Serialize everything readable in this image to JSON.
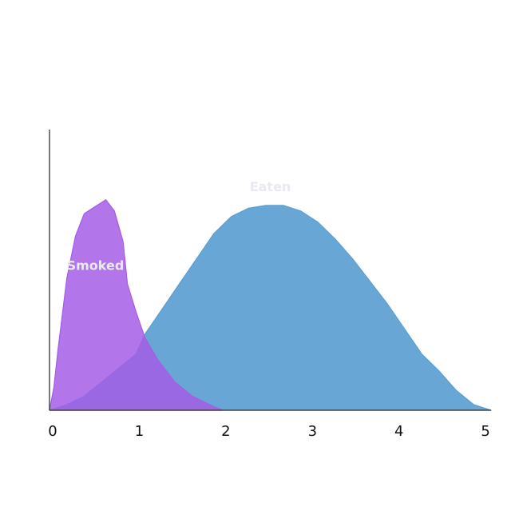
{
  "chart_data": {
    "type": "area",
    "title": "",
    "xlabel": "",
    "ylabel": "",
    "xlim": [
      0,
      5.1
    ],
    "ylim": [
      0,
      1
    ],
    "grid": false,
    "x_ticks": [
      0,
      1,
      2,
      3,
      4,
      5
    ],
    "series": [
      {
        "name": "Eaten",
        "color": "#5b9fd1",
        "opacity": 0.92,
        "label_at": [
          2.55,
          0.78
        ],
        "points": [
          [
            0,
            0.0
          ],
          [
            0.2,
            0.02
          ],
          [
            0.4,
            0.05
          ],
          [
            0.6,
            0.1
          ],
          [
            0.8,
            0.15
          ],
          [
            1.0,
            0.2
          ],
          [
            1.1,
            0.27
          ],
          [
            1.3,
            0.36
          ],
          [
            1.5,
            0.45
          ],
          [
            1.7,
            0.54
          ],
          [
            1.9,
            0.63
          ],
          [
            2.1,
            0.69
          ],
          [
            2.3,
            0.72
          ],
          [
            2.5,
            0.73
          ],
          [
            2.7,
            0.73
          ],
          [
            2.9,
            0.71
          ],
          [
            3.1,
            0.67
          ],
          [
            3.3,
            0.61
          ],
          [
            3.5,
            0.54
          ],
          [
            3.7,
            0.46
          ],
          [
            3.9,
            0.38
          ],
          [
            4.1,
            0.29
          ],
          [
            4.3,
            0.2
          ],
          [
            4.5,
            0.14
          ],
          [
            4.7,
            0.07
          ],
          [
            4.9,
            0.02
          ],
          [
            5.1,
            0.0
          ]
        ]
      },
      {
        "name": "Smoked",
        "color": "#a55de6",
        "opacity": 0.85,
        "label_at": [
          0.53,
          0.5
        ],
        "points": [
          [
            0,
            0.0
          ],
          [
            0.05,
            0.08
          ],
          [
            0.1,
            0.22
          ],
          [
            0.2,
            0.47
          ],
          [
            0.3,
            0.62
          ],
          [
            0.4,
            0.7
          ],
          [
            0.55,
            0.73
          ],
          [
            0.65,
            0.75
          ],
          [
            0.75,
            0.71
          ],
          [
            0.85,
            0.6
          ],
          [
            0.9,
            0.45
          ],
          [
            1.0,
            0.35
          ],
          [
            1.1,
            0.26
          ],
          [
            1.25,
            0.18
          ],
          [
            1.45,
            0.1
          ],
          [
            1.65,
            0.05
          ],
          [
            1.85,
            0.02
          ],
          [
            2.0,
            0.0
          ]
        ]
      }
    ]
  }
}
